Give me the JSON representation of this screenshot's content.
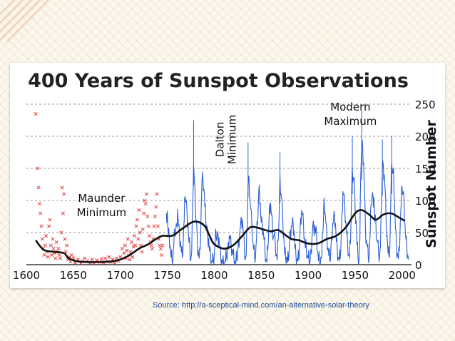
{
  "slide": {
    "source_text": "Source: http://a-sceptical-mind.com/an-alternative-solar-theory",
    "accent_color": "#f0c9a8"
  },
  "chart_data": {
    "type": "scatter",
    "title": "400 Years of Sunspot Observations",
    "ylabel": "Sunspot Number",
    "xlabel": "",
    "xlim": [
      1600,
      2010
    ],
    "ylim": [
      0,
      250
    ],
    "xticks": [
      1600,
      1650,
      1700,
      1750,
      1800,
      1850,
      1900,
      1950,
      2000
    ],
    "yticks": [
      0,
      50,
      100,
      150,
      200,
      250
    ],
    "grid": "horizontal-dashed",
    "colors": {
      "early_obs": "#e03a3a",
      "modern_obs": "#2a5fd6",
      "trend": "#111111",
      "grid": "#9a9a9a"
    },
    "annotations": [
      {
        "lines": [
          "Maunder",
          "Minimum"
        ],
        "x": 1680,
        "y": 98
      },
      {
        "lines": [
          "Dalton",
          "Minimum"
        ],
        "x": 1810,
        "y": 195,
        "rotated": true
      },
      {
        "lines": [
          "Modern",
          "Maximum"
        ],
        "x": 1945,
        "y": 240
      }
    ],
    "early_observations": [
      [
        1610,
        235
      ],
      [
        1612,
        150
      ],
      [
        1613,
        120
      ],
      [
        1614,
        95
      ],
      [
        1615,
        80
      ],
      [
        1616,
        60
      ],
      [
        1617,
        40
      ],
      [
        1618,
        25
      ],
      [
        1619,
        15
      ],
      [
        1620,
        30
      ],
      [
        1621,
        45
      ],
      [
        1622,
        20
      ],
      [
        1623,
        12
      ],
      [
        1624,
        60
      ],
      [
        1625,
        70
      ],
      [
        1626,
        30
      ],
      [
        1627,
        15
      ],
      [
        1628,
        40
      ],
      [
        1629,
        25
      ],
      [
        1630,
        18
      ],
      [
        1631,
        10
      ],
      [
        1632,
        35
      ],
      [
        1633,
        20
      ],
      [
        1634,
        25
      ],
      [
        1635,
        15
      ],
      [
        1636,
        10
      ],
      [
        1637,
        50
      ],
      [
        1638,
        120
      ],
      [
        1639,
        80
      ],
      [
        1640,
        110
      ],
      [
        1641,
        40
      ],
      [
        1642,
        20
      ],
      [
        1643,
        30
      ],
      [
        1644,
        10
      ],
      [
        1645,
        8
      ],
      [
        1646,
        12
      ],
      [
        1647,
        5
      ],
      [
        1648,
        15
      ],
      [
        1650,
        10
      ],
      [
        1652,
        3
      ],
      [
        1655,
        8
      ],
      [
        1658,
        2
      ],
      [
        1660,
        5
      ],
      [
        1662,
        10
      ],
      [
        1665,
        6
      ],
      [
        1668,
        3
      ],
      [
        1670,
        8
      ],
      [
        1672,
        2
      ],
      [
        1675,
        7
      ],
      [
        1678,
        4
      ],
      [
        1680,
        9
      ],
      [
        1682,
        3
      ],
      [
        1684,
        10
      ],
      [
        1686,
        5
      ],
      [
        1688,
        12
      ],
      [
        1690,
        4
      ],
      [
        1692,
        8
      ],
      [
        1694,
        2
      ],
      [
        1696,
        10
      ],
      [
        1698,
        6
      ],
      [
        1700,
        12
      ],
      [
        1702,
        25
      ],
      [
        1704,
        18
      ],
      [
        1705,
        30
      ],
      [
        1706,
        10
      ],
      [
        1707,
        22
      ],
      [
        1708,
        40
      ],
      [
        1709,
        15
      ],
      [
        1710,
        8
      ],
      [
        1711,
        20
      ],
      [
        1712,
        35
      ],
      [
        1713,
        12
      ],
      [
        1714,
        28
      ],
      [
        1715,
        45
      ],
      [
        1716,
        30
      ],
      [
        1717,
        60
      ],
      [
        1718,
        70
      ],
      [
        1719,
        40
      ],
      [
        1720,
        85
      ],
      [
        1721,
        50
      ],
      [
        1722,
        30
      ],
      [
        1723,
        20
      ],
      [
        1724,
        55
      ],
      [
        1725,
        80
      ],
      [
        1726,
        100
      ],
      [
        1727,
        95
      ],
      [
        1728,
        110
      ],
      [
        1729,
        75
      ],
      [
        1730,
        60
      ],
      [
        1731,
        45
      ],
      [
        1732,
        35
      ],
      [
        1733,
        30
      ],
      [
        1734,
        25
      ],
      [
        1735,
        40
      ],
      [
        1736,
        60
      ],
      [
        1737,
        75
      ],
      [
        1738,
        90
      ],
      [
        1739,
        110
      ],
      [
        1740,
        60
      ],
      [
        1741,
        40
      ],
      [
        1742,
        30
      ],
      [
        1743,
        25
      ],
      [
        1744,
        15
      ],
      [
        1745,
        30
      ]
    ],
    "modern_observations": [
      [
        1749,
        80
      ],
      [
        1750,
        83
      ],
      [
        1751,
        47
      ],
      [
        1752,
        47
      ],
      [
        1753,
        30
      ],
      [
        1754,
        12
      ],
      [
        1755,
        9
      ],
      [
        1756,
        10
      ],
      [
        1757,
        32
      ],
      [
        1758,
        47
      ],
      [
        1759,
        54
      ],
      [
        1760,
        62
      ],
      [
        1761,
        86
      ],
      [
        1762,
        61
      ],
      [
        1763,
        45
      ],
      [
        1764,
        36
      ],
      [
        1765,
        20
      ],
      [
        1766,
        11
      ],
      [
        1767,
        38
      ],
      [
        1768,
        70
      ],
      [
        1769,
        106
      ],
      [
        1770,
        101
      ],
      [
        1771,
        82
      ],
      [
        1772,
        66
      ],
      [
        1773,
        35
      ],
      [
        1774,
        31
      ],
      [
        1775,
        7
      ],
      [
        1776,
        20
      ],
      [
        1777,
        92
      ],
      [
        1778,
        154
      ],
      [
        1779,
        126
      ],
      [
        1780,
        85
      ],
      [
        1781,
        68
      ],
      [
        1782,
        38
      ],
      [
        1783,
        23
      ],
      [
        1784,
        10
      ],
      [
        1785,
        24
      ],
      [
        1786,
        83
      ],
      [
        1787,
        132
      ],
      [
        1788,
        131
      ],
      [
        1789,
        118
      ],
      [
        1790,
        90
      ],
      [
        1791,
        67
      ],
      [
        1792,
        60
      ],
      [
        1793,
        47
      ],
      [
        1794,
        41
      ],
      [
        1795,
        21
      ],
      [
        1796,
        16
      ],
      [
        1797,
        6
      ],
      [
        1798,
        4
      ],
      [
        1799,
        7
      ],
      [
        1800,
        14
      ],
      [
        1801,
        34
      ],
      [
        1802,
        45
      ],
      [
        1803,
        43
      ],
      [
        1804,
        48
      ],
      [
        1805,
        42
      ],
      [
        1806,
        28
      ],
      [
        1807,
        10
      ],
      [
        1808,
        8
      ],
      [
        1809,
        2
      ],
      [
        1810,
        0
      ],
      [
        1811,
        1
      ],
      [
        1812,
        5
      ],
      [
        1813,
        12
      ],
      [
        1814,
        14
      ],
      [
        1815,
        35
      ],
      [
        1816,
        46
      ],
      [
        1817,
        41
      ],
      [
        1818,
        30
      ],
      [
        1819,
        24
      ],
      [
        1820,
        16
      ],
      [
        1821,
        7
      ],
      [
        1822,
        4
      ],
      [
        1823,
        2
      ],
      [
        1824,
        8
      ],
      [
        1825,
        17
      ],
      [
        1826,
        36
      ],
      [
        1827,
        50
      ],
      [
        1828,
        62
      ],
      [
        1829,
        67
      ],
      [
        1830,
        71
      ],
      [
        1831,
        48
      ],
      [
        1832,
        28
      ],
      [
        1833,
        8
      ],
      [
        1834,
        13
      ],
      [
        1835,
        57
      ],
      [
        1836,
        122
      ],
      [
        1837,
        138
      ],
      [
        1838,
        103
      ],
      [
        1839,
        86
      ],
      [
        1840,
        65
      ],
      [
        1841,
        37
      ],
      [
        1842,
        24
      ],
      [
        1843,
        11
      ],
      [
        1844,
        15
      ],
      [
        1845,
        40
      ],
      [
        1846,
        62
      ],
      [
        1847,
        98
      ],
      [
        1848,
        124
      ],
      [
        1849,
        96
      ],
      [
        1850,
        66
      ],
      [
        1851,
        64
      ],
      [
        1852,
        54
      ],
      [
        1853,
        39
      ],
      [
        1854,
        21
      ],
      [
        1855,
        7
      ],
      [
        1856,
        4
      ],
      [
        1857,
        23
      ],
      [
        1858,
        55
      ],
      [
        1859,
        94
      ],
      [
        1860,
        96
      ],
      [
        1861,
        77
      ],
      [
        1862,
        59
      ],
      [
        1863,
        44
      ],
      [
        1864,
        47
      ],
      [
        1865,
        30
      ],
      [
        1866,
        16
      ],
      [
        1867,
        7
      ],
      [
        1868,
        37
      ],
      [
        1869,
        74
      ],
      [
        1870,
        139
      ],
      [
        1871,
        111
      ],
      [
        1872,
        102
      ],
      [
        1873,
        66
      ],
      [
        1874,
        45
      ],
      [
        1875,
        17
      ],
      [
        1876,
        11
      ],
      [
        1877,
        12
      ],
      [
        1878,
        3
      ],
      [
        1879,
        6
      ],
      [
        1880,
        32
      ],
      [
        1881,
        54
      ],
      [
        1882,
        60
      ],
      [
        1883,
        64
      ],
      [
        1884,
        64
      ],
      [
        1885,
        52
      ],
      [
        1886,
        25
      ],
      [
        1887,
        13
      ],
      [
        1888,
        7
      ],
      [
        1889,
        6
      ],
      [
        1890,
        7
      ],
      [
        1891,
        36
      ],
      [
        1892,
        73
      ],
      [
        1893,
        85
      ],
      [
        1894,
        78
      ],
      [
        1895,
        64
      ],
      [
        1896,
        42
      ],
      [
        1897,
        26
      ],
      [
        1898,
        27
      ],
      [
        1899,
        12
      ],
      [
        1900,
        10
      ],
      [
        1901,
        3
      ],
      [
        1902,
        5
      ],
      [
        1903,
        24
      ],
      [
        1904,
        42
      ],
      [
        1905,
        63
      ],
      [
        1906,
        54
      ],
      [
        1907,
        62
      ],
      [
        1908,
        49
      ],
      [
        1909,
        44
      ],
      [
        1910,
        19
      ],
      [
        1911,
        6
      ],
      [
        1912,
        4
      ],
      [
        1913,
        1
      ],
      [
        1914,
        10
      ],
      [
        1915,
        47
      ],
      [
        1916,
        57
      ],
      [
        1917,
        104
      ],
      [
        1918,
        81
      ],
      [
        1919,
        64
      ],
      [
        1920,
        38
      ],
      [
        1921,
        26
      ],
      [
        1922,
        14
      ],
      [
        1923,
        6
      ],
      [
        1924,
        17
      ],
      [
        1925,
        44
      ],
      [
        1926,
        64
      ],
      [
        1927,
        69
      ],
      [
        1928,
        78
      ],
      [
        1929,
        65
      ],
      [
        1930,
        36
      ],
      [
        1931,
        21
      ],
      [
        1932,
        11
      ],
      [
        1933,
        6
      ],
      [
        1934,
        9
      ],
      [
        1935,
        36
      ],
      [
        1936,
        80
      ],
      [
        1937,
        114
      ],
      [
        1938,
        110
      ],
      [
        1939,
        89
      ],
      [
        1940,
        68
      ],
      [
        1941,
        48
      ],
      [
        1942,
        31
      ],
      [
        1943,
        16
      ],
      [
        1944,
        10
      ],
      [
        1945,
        33
      ],
      [
        1946,
        93
      ],
      [
        1947,
        152
      ],
      [
        1948,
        136
      ],
      [
        1949,
        135
      ],
      [
        1950,
        84
      ],
      [
        1951,
        69
      ],
      [
        1952,
        31
      ],
      [
        1953,
        14
      ],
      [
        1954,
        4
      ],
      [
        1955,
        38
      ],
      [
        1956,
        142
      ],
      [
        1957,
        190
      ],
      [
        1958,
        185
      ],
      [
        1959,
        159
      ],
      [
        1960,
        112
      ],
      [
        1961,
        54
      ],
      [
        1962,
        38
      ],
      [
        1963,
        28
      ],
      [
        1964,
        10
      ],
      [
        1965,
        15
      ],
      [
        1966,
        47
      ],
      [
        1967,
        94
      ],
      [
        1968,
        106
      ],
      [
        1969,
        106
      ],
      [
        1970,
        105
      ],
      [
        1971,
        67
      ],
      [
        1972,
        69
      ],
      [
        1973,
        38
      ],
      [
        1974,
        35
      ],
      [
        1975,
        16
      ],
      [
        1976,
        13
      ],
      [
        1977,
        28
      ],
      [
        1978,
        93
      ],
      [
        1979,
        155
      ],
      [
        1980,
        155
      ],
      [
        1981,
        140
      ],
      [
        1982,
        116
      ],
      [
        1983,
        67
      ],
      [
        1984,
        46
      ],
      [
        1985,
        18
      ],
      [
        1986,
        13
      ],
      [
        1987,
        29
      ],
      [
        1988,
        100
      ],
      [
        1989,
        158
      ],
      [
        1990,
        142
      ],
      [
        1991,
        146
      ],
      [
        1992,
        94
      ],
      [
        1993,
        55
      ],
      [
        1994,
        30
      ],
      [
        1995,
        18
      ],
      [
        1996,
        9
      ],
      [
        1997,
        21
      ],
      [
        1998,
        64
      ],
      [
        1999,
        93
      ],
      [
        2000,
        120
      ],
      [
        2001,
        111
      ],
      [
        2002,
        104
      ],
      [
        2003,
        64
      ],
      [
        2004,
        40
      ],
      [
        2005,
        30
      ],
      [
        2006,
        15
      ],
      [
        2007,
        8
      ]
    ],
    "peak_observations": [
      [
        1778,
        225
      ],
      [
        1957,
        240
      ],
      [
        1947,
        200
      ],
      [
        1979,
        195
      ],
      [
        1989,
        200
      ],
      [
        1836,
        190
      ],
      [
        1870,
        175
      ]
    ],
    "trend": {
      "name": "",
      "points": [
        [
          1610,
          38
        ],
        [
          1615,
          28
        ],
        [
          1620,
          22
        ],
        [
          1630,
          20
        ],
        [
          1640,
          18
        ],
        [
          1645,
          10
        ],
        [
          1655,
          5
        ],
        [
          1670,
          4
        ],
        [
          1690,
          5
        ],
        [
          1700,
          8
        ],
        [
          1710,
          15
        ],
        [
          1720,
          25
        ],
        [
          1730,
          32
        ],
        [
          1738,
          40
        ],
        [
          1745,
          45
        ],
        [
          1755,
          45
        ],
        [
          1765,
          55
        ],
        [
          1775,
          65
        ],
        [
          1782,
          67
        ],
        [
          1790,
          60
        ],
        [
          1795,
          45
        ],
        [
          1800,
          32
        ],
        [
          1810,
          25
        ],
        [
          1820,
          30
        ],
        [
          1830,
          45
        ],
        [
          1838,
          58
        ],
        [
          1845,
          58
        ],
        [
          1852,
          55
        ],
        [
          1860,
          52
        ],
        [
          1868,
          54
        ],
        [
          1875,
          47
        ],
        [
          1882,
          40
        ],
        [
          1890,
          38
        ],
        [
          1900,
          33
        ],
        [
          1910,
          33
        ],
        [
          1920,
          40
        ],
        [
          1930,
          45
        ],
        [
          1940,
          58
        ],
        [
          1950,
          80
        ],
        [
          1957,
          85
        ],
        [
          1965,
          78
        ],
        [
          1972,
          70
        ],
        [
          1980,
          78
        ],
        [
          1988,
          80
        ],
        [
          1995,
          75
        ],
        [
          2003,
          68
        ]
      ]
    }
  }
}
